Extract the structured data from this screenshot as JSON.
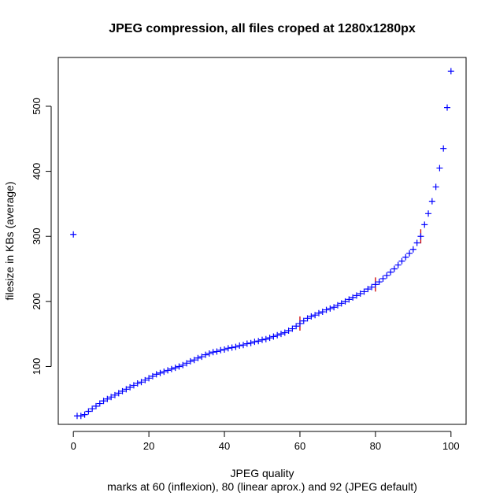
{
  "chart_data": {
    "type": "scatter",
    "title": "JPEG compression, all files croped at 1280x1280px",
    "xlabel": "JPEG quality",
    "subtitle": "marks at 60 (inflexion), 80 (linear aprox.) and 92 (JPEG default)",
    "ylabel": "filesize in KBs (average)",
    "xlim": [
      -4,
      104
    ],
    "ylim": [
      11,
      575
    ],
    "x_ticks": [
      0,
      20,
      40,
      60,
      80,
      100
    ],
    "y_ticks": [
      100,
      200,
      300,
      400,
      500
    ],
    "grid": false,
    "colors": {
      "points": "#0000ff",
      "marks": "#cc0000",
      "axis": "#000000"
    },
    "series": [
      {
        "x": [
          0,
          1,
          2,
          3,
          4,
          5,
          6,
          7,
          8,
          9,
          10,
          11,
          12,
          13,
          14,
          15,
          16,
          17,
          18,
          19,
          20,
          21,
          22,
          23,
          24,
          25,
          26,
          27,
          28,
          29,
          30,
          31,
          32,
          33,
          34,
          35,
          36,
          37,
          38,
          39,
          40,
          41,
          42,
          43,
          44,
          45,
          46,
          47,
          48,
          49,
          50,
          51,
          52,
          53,
          54,
          55,
          56,
          57,
          58,
          59,
          60,
          61,
          62,
          63,
          64,
          65,
          66,
          67,
          68,
          69,
          70,
          71,
          72,
          73,
          74,
          75,
          76,
          77,
          78,
          79,
          80,
          81,
          82,
          83,
          84,
          85,
          86,
          87,
          88,
          89,
          90,
          91,
          92,
          93,
          94,
          95,
          96,
          97,
          98,
          99,
          100
        ],
        "y": [
          303,
          24,
          24,
          26,
          31,
          35,
          39,
          43,
          47,
          50,
          53,
          56,
          59,
          62,
          65,
          68,
          71,
          74,
          76,
          79,
          82,
          85,
          88,
          90,
          92,
          94,
          96,
          98,
          100,
          102,
          105,
          108,
          110,
          113,
          115,
          118,
          120,
          122,
          123,
          125,
          126,
          128,
          129,
          130,
          132,
          133,
          135,
          136,
          138,
          139,
          141,
          142,
          144,
          146,
          148,
          150,
          152,
          155,
          158,
          162,
          166,
          170,
          174,
          177,
          179,
          182,
          184,
          187,
          189,
          191,
          194,
          197,
          200,
          203,
          206,
          209,
          212,
          215,
          219,
          222,
          226,
          230,
          235,
          240,
          245,
          250,
          256,
          262,
          268,
          274,
          280,
          290,
          300,
          318,
          335,
          354,
          376,
          405,
          435,
          498,
          554
        ]
      }
    ],
    "marks": [
      {
        "x": 60,
        "y": 166
      },
      {
        "x": 80,
        "y": 226
      },
      {
        "x": 92,
        "y": 300
      }
    ]
  }
}
